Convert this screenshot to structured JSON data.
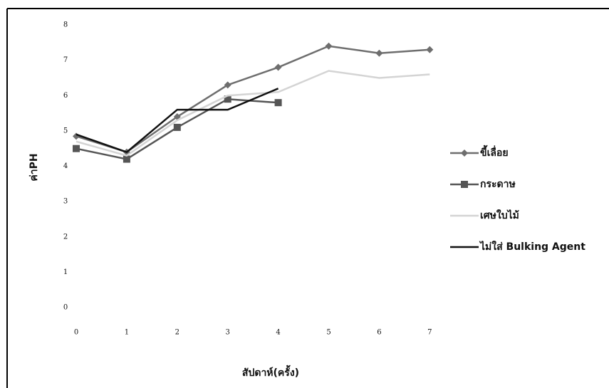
{
  "chart_data": {
    "type": "line",
    "x_label": "สัปดาห์(ครั้ง)",
    "y_label": "ค่าPH",
    "categories": [
      "0",
      "1",
      "2",
      "3",
      "4",
      "5",
      "6",
      "7"
    ],
    "ylim": [
      0,
      8
    ],
    "yticks": [
      0,
      1,
      2,
      3,
      4,
      5,
      6,
      7,
      8
    ],
    "legend": "right",
    "series": [
      {
        "name": "ขี้เลื่อย",
        "color": "#6e6e6e",
        "marker": "diamond",
        "values": [
          4.85,
          4.4,
          5.4,
          6.3,
          6.8,
          7.4,
          7.2,
          7.3
        ]
      },
      {
        "name": "กระดาษ",
        "color": "#555555",
        "marker": "square",
        "values": [
          4.5,
          4.2,
          5.1,
          5.9,
          5.8,
          null,
          null,
          null
        ]
      },
      {
        "name": "เศษใบไม้",
        "color": "#d4d4d4",
        "marker": "none",
        "values": [
          4.7,
          4.3,
          5.3,
          6.0,
          6.1,
          6.7,
          6.5,
          6.6
        ]
      },
      {
        "name": "ไม่ใส่ Bulking Agent",
        "color": "#111111",
        "marker": "none",
        "values": [
          4.9,
          4.4,
          5.6,
          5.6,
          6.2,
          null,
          null,
          null
        ]
      }
    ]
  }
}
